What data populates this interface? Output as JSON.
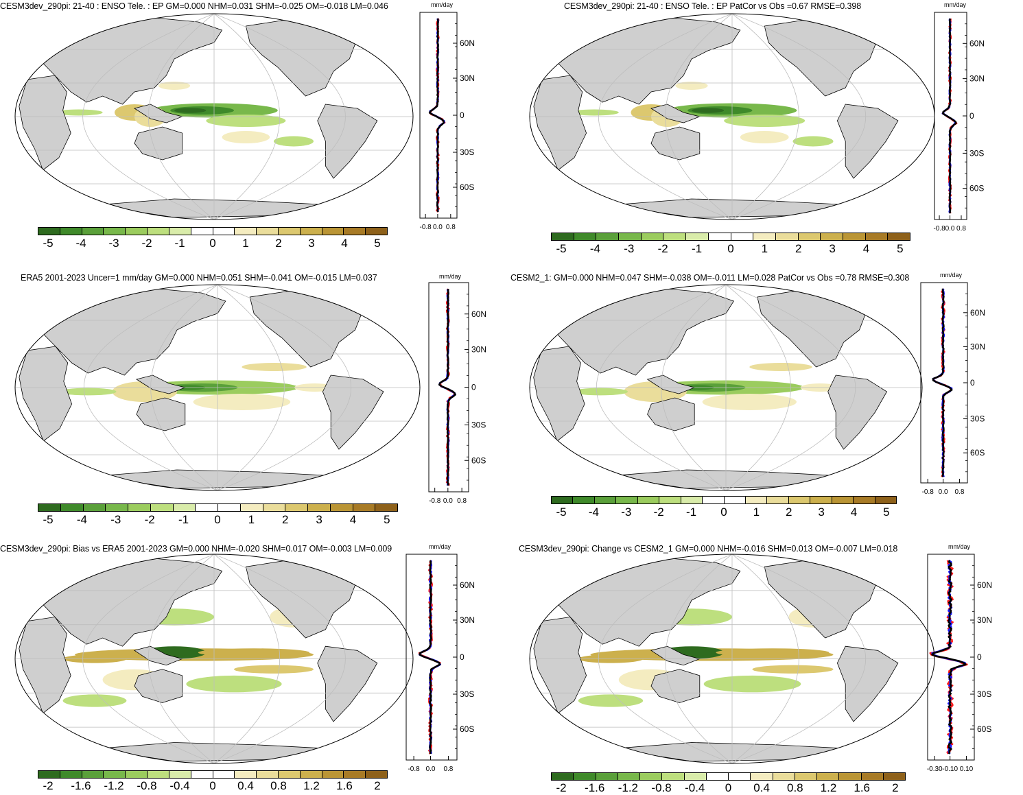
{
  "panels": [
    {
      "id": "p1",
      "title": "CESM3dev_290pi: 21-40 : ENSO Tele. : EP GM=0.000 NHM=0.031 SHM=-0.025 OM=-0.018 LM=0.046",
      "unit": "mm/day",
      "lat_labels": [
        "60N",
        "30N",
        "0",
        "30S",
        "60S"
      ],
      "x_labels": [
        "-0.8",
        "0.0",
        "0.8"
      ],
      "colorbar_labels": [
        "-5",
        "-4",
        "-3",
        "-2",
        "-1",
        "0",
        "1",
        "2",
        "3",
        "4",
        "5"
      ]
    },
    {
      "id": "p2",
      "title": "CESM3dev_290pi: 21-40 : ENSO Tele. : EP PatCor vs Obs =0.67 RMSE=0.398",
      "unit": "mm/day",
      "lat_labels": [
        "60N",
        "30N",
        "0",
        "30S",
        "60S"
      ],
      "x_labels": [
        "-0.8",
        "0.0",
        "0.8"
      ],
      "colorbar_labels": [
        "-5",
        "-4",
        "-3",
        "-2",
        "-1",
        "0",
        "1",
        "2",
        "3",
        "4",
        "5"
      ]
    },
    {
      "id": "p3",
      "title": "ERA5 2001-2023 Uncer=1 mm/day GM=0.000 NHM=0.051 SHM=-0.041 OM=-0.015 LM=0.037",
      "unit": "mm/day",
      "lat_labels": [
        "60N",
        "30N",
        "0",
        "30S",
        "60S"
      ],
      "x_labels": [
        "-0.8",
        "0.0",
        "0.8"
      ],
      "colorbar_labels": [
        "-5",
        "-4",
        "-3",
        "-2",
        "-1",
        "0",
        "1",
        "2",
        "3",
        "4",
        "5"
      ]
    },
    {
      "id": "p4",
      "title": "CESM2_1: GM=0.000 NHM=0.047 SHM=-0.038 OM=-0.011 LM=0.028 PatCor vs Obs =0.78 RMSE=0.308",
      "unit": "mm/day",
      "lat_labels": [
        "60N",
        "30N",
        "0",
        "30S",
        "60S"
      ],
      "x_labels": [
        "-0.8",
        "0.0",
        "0.8"
      ],
      "colorbar_labels": [
        "-5",
        "-4",
        "-3",
        "-2",
        "-1",
        "0",
        "1",
        "2",
        "3",
        "4",
        "5"
      ]
    },
    {
      "id": "p5",
      "title": "CESM3dev_290pi: Bias vs ERA5 2001-2023 GM=0.000 NHM=-0.020 SHM=0.017 OM=-0.003 LM=0.009",
      "unit": "mm/day",
      "lat_labels": [
        "60N",
        "30N",
        "0",
        "30S",
        "60S"
      ],
      "x_labels": [
        "-0.8",
        "0.0",
        "0.8"
      ],
      "colorbar_labels": [
        "-2",
        "-1.6",
        "-1.2",
        "-0.8",
        "-0.4",
        "0",
        "0.4",
        "0.8",
        "1.2",
        "1.6",
        "2"
      ]
    },
    {
      "id": "p6",
      "title": "CESM3dev_290pi: Change vs CESM2_1 GM=0.000 NHM=-0.016 SHM=0.013 OM=-0.007 LM=0.018",
      "unit": "mm/day",
      "lat_labels": [
        "60N",
        "30N",
        "0",
        "30S",
        "60S"
      ],
      "x_labels": [
        "-0.30",
        "-0.10",
        "0.10"
      ],
      "colorbar_labels": [
        "-2",
        "-1.6",
        "-1.2",
        "-0.8",
        "-0.4",
        "0",
        "0.4",
        "0.8",
        "1.2",
        "1.6",
        "2"
      ]
    }
  ],
  "colors": {
    "land": "#cfcfcf",
    "ocean": "#ffffff",
    "grid": "#bdbdbd",
    "series_black": "#000000",
    "series_blue": "#1a1aff",
    "series_red": "#ff1a1a",
    "palette": [
      "#2e6b1f",
      "#3f8a2a",
      "#5aa03a",
      "#78b84b",
      "#9bcc5e",
      "#bddf7e",
      "#d9ecaa",
      "#ffffff",
      "#ffffff",
      "#f4ecc0",
      "#eadd9b",
      "#dcc86f",
      "#ccb04d",
      "#ba9535",
      "#a87b26",
      "#8e611a"
    ]
  }
}
